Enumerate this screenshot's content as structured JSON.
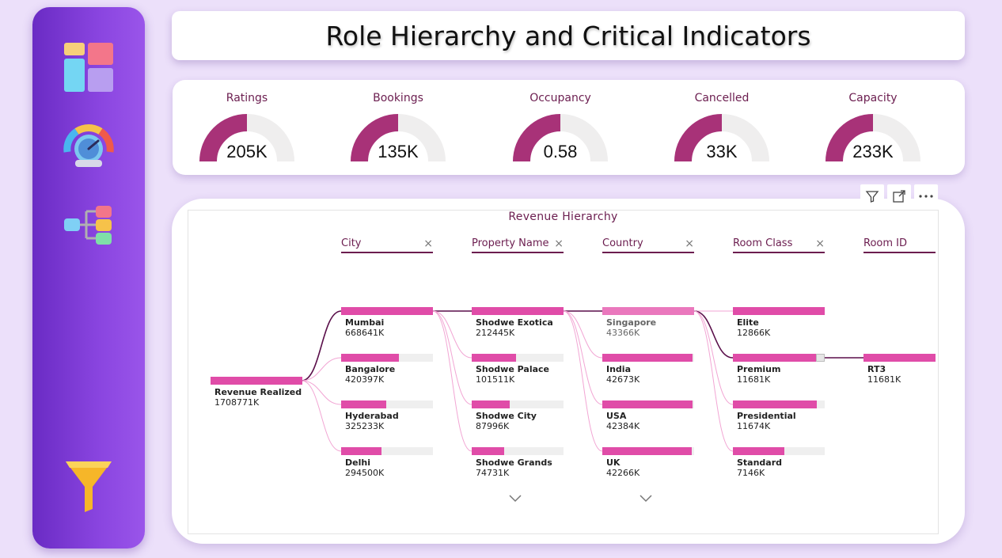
{
  "title": "Role Hierarchy and Critical Indicators",
  "sidebar": {
    "items": [
      {
        "icon": "dashboard-icon"
      },
      {
        "icon": "gauge-icon"
      },
      {
        "icon": "hierarchy-icon"
      },
      {
        "icon": "filter-funnel-icon"
      }
    ]
  },
  "kpis": [
    {
      "label": "Ratings",
      "value": "205K",
      "fill": 0.5
    },
    {
      "label": "Bookings",
      "value": "135K",
      "fill": 0.5
    },
    {
      "label": "Occupancy",
      "value": "0.58",
      "fill": 0.5
    },
    {
      "label": "Cancelled",
      "value": "33K",
      "fill": 0.5
    },
    {
      "label": "Capacity",
      "value": "233K",
      "fill": 0.5
    }
  ],
  "colors": {
    "accent": "#e04ca8",
    "gauge": "#a83278",
    "dark": "#6b1d4f",
    "track": "#efeeee"
  },
  "tree": {
    "title": "Revenue Hierarchy",
    "levels": [
      {
        "label": "City",
        "closable": true
      },
      {
        "label": "Property Name",
        "closable": true
      },
      {
        "label": "Country",
        "closable": true
      },
      {
        "label": "Room Class",
        "closable": true
      },
      {
        "label": "Room ID",
        "closable": false
      }
    ],
    "root": {
      "label": "Revenue Realized",
      "value": "1708771K"
    },
    "columns": [
      [
        {
          "label": "Mumbai",
          "value": "668641K",
          "fill": 1.0
        },
        {
          "label": "Bangalore",
          "value": "420397K",
          "fill": 0.63
        },
        {
          "label": "Hyderabad",
          "value": "325233K",
          "fill": 0.49
        },
        {
          "label": "Delhi",
          "value": "294500K",
          "fill": 0.44
        }
      ],
      [
        {
          "label": "Shodwe Exotica",
          "value": "212445K",
          "fill": 1.0
        },
        {
          "label": "Shodwe Palace",
          "value": "101511K",
          "fill": 0.48
        },
        {
          "label": "Shodwe City",
          "value": "87996K",
          "fill": 0.41
        },
        {
          "label": "Shodwe Grands",
          "value": "74731K",
          "fill": 0.35
        }
      ],
      [
        {
          "label": "Singapore",
          "value": "43366K",
          "fill": 1.0,
          "dim": true
        },
        {
          "label": "India",
          "value": "42673K",
          "fill": 0.98
        },
        {
          "label": "USA",
          "value": "42384K",
          "fill": 0.98
        },
        {
          "label": "UK",
          "value": "42266K",
          "fill": 0.97
        }
      ],
      [
        {
          "label": "Elite",
          "value": "12866K",
          "fill": 1.0
        },
        {
          "label": "Premium",
          "value": "11681K",
          "fill": 0.91
        },
        {
          "label": "Presidential",
          "value": "11674K",
          "fill": 0.91
        },
        {
          "label": "Standard",
          "value": "7146K",
          "fill": 0.56
        }
      ],
      [
        {
          "label": "RT3",
          "value": "11681K",
          "fill": 1.0
        }
      ]
    ]
  }
}
